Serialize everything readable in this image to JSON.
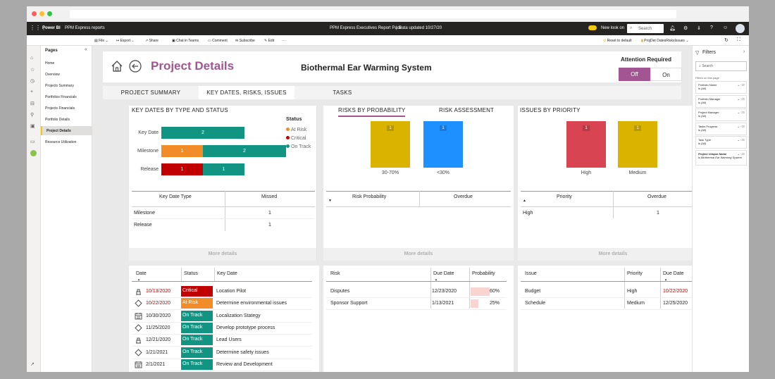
{
  "app": {
    "name": "Power BI",
    "workspace": "PPM Express reports",
    "report_title": "PPM Express Executives Report Pack",
    "data_updated": "Data updated 10/27/20",
    "new_look": "New look on",
    "search_placeholder": "Search"
  },
  "toolbar": {
    "file": "File",
    "export": "Export",
    "share": "Share",
    "chat": "Chat in Teams",
    "comment": "Comment",
    "subscribe": "Subscribe",
    "edit": "Edit",
    "more": "···",
    "reset": "Reset to default",
    "bookmark": "ProjDet DatesRisksIssues"
  },
  "pages_panel": {
    "title": "Pages",
    "items": [
      {
        "label": "Home"
      },
      {
        "label": "Overview"
      },
      {
        "label": "Projects Summary"
      },
      {
        "label": "Portfolios Financials"
      },
      {
        "label": "Projects Financials"
      },
      {
        "label": "Portfolio Details"
      },
      {
        "label": "Project Details"
      },
      {
        "label": "Resource Utilization"
      }
    ],
    "active_index": 6
  },
  "header": {
    "title": "Project Details",
    "project_name": "Biothermal Ear Warming System",
    "attention_label": "Attention Required",
    "toggle_off": "Off",
    "toggle_on": "On",
    "toggle_state": "Off"
  },
  "tabs": [
    {
      "label": "PROJECT SUMMARY"
    },
    {
      "label": "KEY DATES, RISKS, ISSUES",
      "active": true
    },
    {
      "label": "TASKS"
    }
  ],
  "colors": {
    "accent": "#a25592",
    "at_risk": "#f28c28",
    "critical": "#c00000",
    "on_track": "#119582",
    "risk_yellow": "#d9b300",
    "risk_blue": "#1e90ff",
    "issue_red": "#d94452"
  },
  "key_dates_panel": {
    "title": "KEY DATES BY TYPE AND STATUS",
    "legend_title": "Status",
    "legend": [
      {
        "label": "At Risk",
        "color": "#f28c28"
      },
      {
        "label": "Critical",
        "color": "#c00000"
      },
      {
        "label": "On Track",
        "color": "#119582"
      }
    ],
    "chart_data": {
      "type": "bar",
      "orientation": "horizontal-stacked",
      "categories": [
        "Key Date",
        "Milestone",
        "Release"
      ],
      "series": [
        {
          "name": "At Risk",
          "values": [
            0,
            1,
            0
          ]
        },
        {
          "name": "Critical",
          "values": [
            0,
            0,
            1
          ]
        },
        {
          "name": "On Track",
          "values": [
            2,
            2,
            1
          ]
        }
      ]
    },
    "table": {
      "headers": [
        "Key Date Type",
        "Missed"
      ],
      "rows": [
        [
          "Milestone",
          "1"
        ],
        [
          "Release",
          "1"
        ]
      ]
    },
    "more": "More details"
  },
  "risks_panel": {
    "tab_probability": "RISKS BY PROBABILITY",
    "tab_assessment": "RISK ASSESSMENT",
    "chart_data": {
      "type": "bar",
      "categories": [
        "30-70%",
        "<30%"
      ],
      "values": [
        1,
        1
      ]
    },
    "table": {
      "headers": [
        "Risk Probability",
        "Overdue"
      ]
    },
    "more": "More details"
  },
  "issues_panel": {
    "title": "ISSUES BY PRIORITY",
    "chart_data": {
      "type": "bar",
      "categories": [
        "High",
        "Medium"
      ],
      "values": [
        1,
        1
      ]
    },
    "table": {
      "headers": [
        "Priority",
        "Overdue"
      ],
      "rows": [
        [
          "High",
          "1"
        ]
      ]
    },
    "more": "More details"
  },
  "key_dates_table": {
    "headers": [
      "Date",
      "Status",
      "Key Date"
    ],
    "rows": [
      {
        "icon": "milestone",
        "date": "10/13/2020",
        "status": "Critical",
        "name": "Location Pilot",
        "date_overdue": true
      },
      {
        "icon": "diamond",
        "date": "10/22/2020",
        "status": "At Risk",
        "name": "Determine environmental issues",
        "date_overdue": true
      },
      {
        "icon": "calendar",
        "date": "10/30/2020",
        "status": "On Track",
        "name": "Localization Stategy",
        "date_overdue": false
      },
      {
        "icon": "diamond",
        "date": "11/25/2020",
        "status": "On Track",
        "name": "Develop prototype process",
        "date_overdue": false
      },
      {
        "icon": "milestone",
        "date": "12/21/2020",
        "status": "On Track",
        "name": "Lead Users",
        "date_overdue": false
      },
      {
        "icon": "diamond",
        "date": "1/21/2021",
        "status": "On Track",
        "name": "Determine safety issues",
        "date_overdue": false
      },
      {
        "icon": "calendar",
        "date": "2/1/2021",
        "status": "On Track",
        "name": "Review and Development",
        "date_overdue": false
      }
    ]
  },
  "risks_table": {
    "headers": [
      "Risk",
      "Due Date",
      "Probability"
    ],
    "rows": [
      {
        "risk": "Disputes",
        "due": "12/23/2020",
        "probability": "60%",
        "prob_value": 0.6
      },
      {
        "risk": "Sponsor Support",
        "due": "1/13/2021",
        "probability": "25%",
        "prob_value": 0.25
      }
    ]
  },
  "issues_table": {
    "headers": [
      "Issue",
      "Priority",
      "Due Date"
    ],
    "rows": [
      {
        "issue": "Budget",
        "priority": "High",
        "due": "10/22/2020",
        "overdue": true
      },
      {
        "issue": "Schedule",
        "priority": "Medium",
        "due": "12/25/2020",
        "overdue": false
      }
    ]
  },
  "filters": {
    "title": "Filters",
    "search_placeholder": "Search",
    "section": "Filters on this page",
    "cards": [
      {
        "name": "Portfolio Name",
        "value": "is (All)"
      },
      {
        "name": "Portfolio Manager",
        "value": "is (All)"
      },
      {
        "name": "Project Manager",
        "value": "is (All)"
      },
      {
        "name": "Tasks Progress",
        "value": "is (All)"
      },
      {
        "name": "Task Type",
        "value": "is (All)"
      },
      {
        "name": "Project Unique Name",
        "value": "is Biothermal Ear Warming System"
      }
    ]
  }
}
